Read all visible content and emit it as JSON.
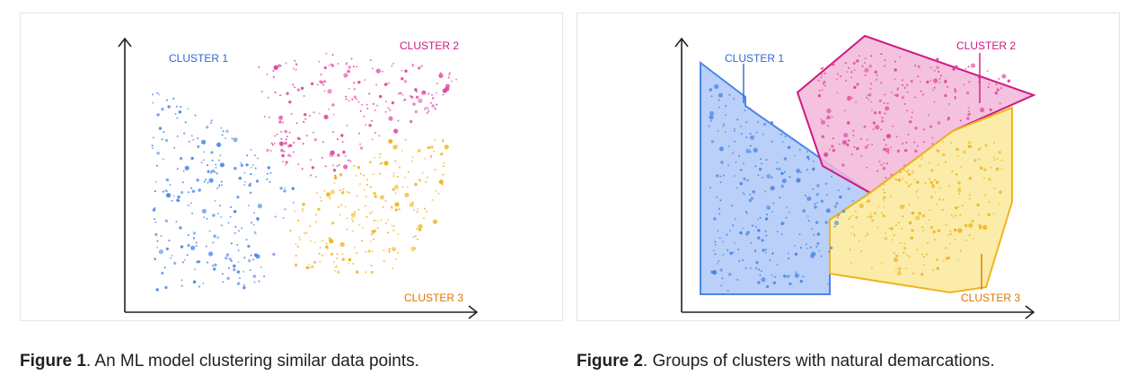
{
  "colors": {
    "cluster1": "#4a86e8",
    "cluster2": "#e0479e",
    "cluster3": "#f0b41e",
    "cluster1_fill": "#aec8f7",
    "cluster2_fill": "#f2b7d8",
    "cluster3_fill": "#fbeaa0",
    "cluster1_label": "#3367d6",
    "cluster2_label": "#d01884",
    "cluster3_label": "#e37400",
    "axis": "#202124"
  },
  "chart_data": [
    {
      "type": "scatter",
      "xlabel": "",
      "ylabel": "",
      "grid": false,
      "series": [
        {
          "name": "CLUSTER 1",
          "color_key": "cluster1"
        },
        {
          "name": "CLUSTER 2",
          "color_key": "cluster2"
        },
        {
          "name": "CLUSTER 3",
          "color_key": "cluster3"
        }
      ]
    },
    {
      "type": "scatter",
      "xlabel": "",
      "ylabel": "",
      "grid": false,
      "series": [
        {
          "name": "CLUSTER 1",
          "color_key": "cluster1",
          "region": "shaded polygon"
        },
        {
          "name": "CLUSTER 2",
          "color_key": "cluster2",
          "region": "shaded polygon"
        },
        {
          "name": "CLUSTER 3",
          "color_key": "cluster3",
          "region": "shaded polygon"
        }
      ]
    }
  ],
  "captions": [
    {
      "bold": "Figure 1",
      "text": ". An ML model clustering similar data points."
    },
    {
      "bold": "Figure 2",
      "text": ". Groups of clusters with natural demarcations."
    }
  ]
}
